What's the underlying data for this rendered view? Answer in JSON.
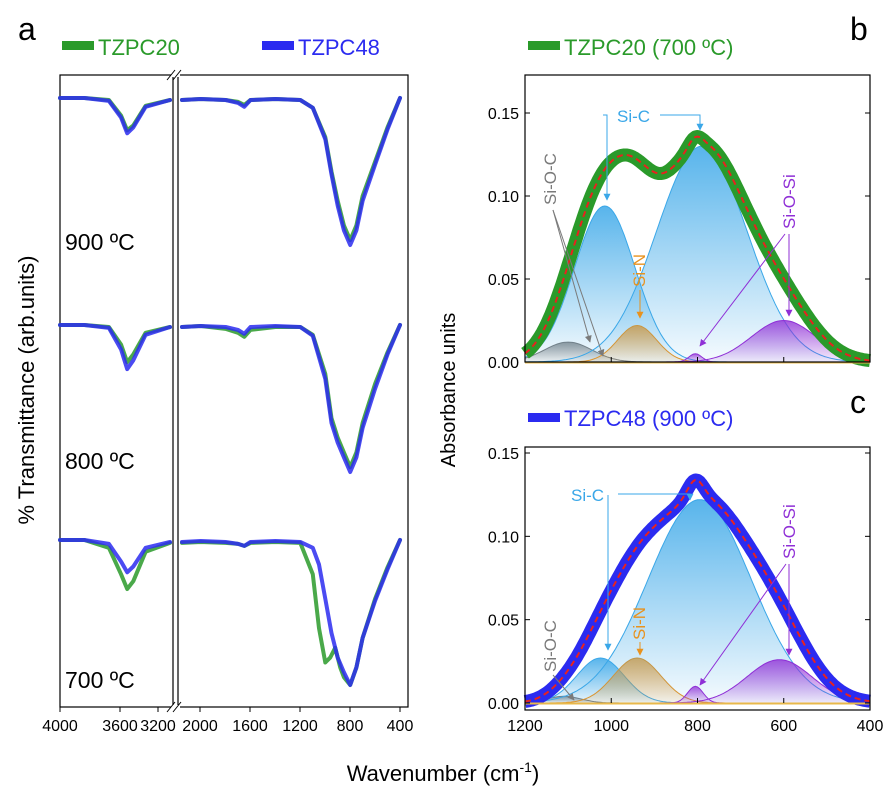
{
  "figure": {
    "xlabel_shared": "Wavenumber (cm",
    "xlabel_sup": "-1",
    "xlabel_close": ")"
  },
  "colors": {
    "TZPC20": "#2a9a2a",
    "TZPC48": "#2b2bf0",
    "SiC": "#3aa7e8",
    "SiN": "#e8921e",
    "SiOC": "#7a7a7a",
    "SiOSi": "#8f2fd6",
    "fit": "#e8221e"
  },
  "chart_data": [
    {
      "panel": "a",
      "type": "line",
      "ylabel": "% Transmittance (arb.units)",
      "xlabel": "Wavenumber (cm-1)",
      "x_ticks": [
        "4000",
        "3600",
        "3200",
        "2000",
        "1600",
        "1200",
        "800",
        "400"
      ],
      "x_break": [
        3100,
        2150
      ],
      "legend": [
        {
          "name": "TZPC20",
          "color": "#2a9a2a"
        },
        {
          "name": "TZPC48",
          "color": "#2b2bf0"
        }
      ],
      "subplots": [
        {
          "label": "900 ºC",
          "series": [
            {
              "name": "TZPC20",
              "x": [
                4000,
                3800,
                3600,
                3500,
                3450,
                3400,
                3300,
                3100,
                2150,
                2000,
                1800,
                1700,
                1650,
                1600,
                1400,
                1200,
                1100,
                1000,
                950,
                900,
                850,
                800,
                750,
                700,
                600,
                500,
                400
              ],
              "y": [
                0,
                0,
                -0.02,
                -0.18,
                -0.33,
                -0.28,
                -0.08,
                -0.02,
                -0.02,
                -0.01,
                -0.02,
                -0.04,
                -0.07,
                -0.02,
                -0.01,
                -0.02,
                -0.1,
                -0.4,
                -0.75,
                -1.05,
                -1.3,
                -1.45,
                -1.3,
                -1.0,
                -0.65,
                -0.3,
                0
              ]
            },
            {
              "name": "TZPC48",
              "x": [
                4000,
                3800,
                3600,
                3500,
                3450,
                3400,
                3300,
                3100,
                2150,
                2000,
                1800,
                1700,
                1650,
                1600,
                1400,
                1200,
                1100,
                1000,
                950,
                900,
                850,
                800,
                750,
                700,
                600,
                500,
                400
              ],
              "y": [
                0,
                0,
                -0.03,
                -0.2,
                -0.36,
                -0.3,
                -0.09,
                -0.02,
                -0.02,
                -0.01,
                -0.02,
                -0.05,
                -0.09,
                -0.02,
                -0.01,
                -0.02,
                -0.1,
                -0.42,
                -0.78,
                -1.1,
                -1.35,
                -1.5,
                -1.35,
                -1.05,
                -0.68,
                -0.32,
                0
              ]
            }
          ]
        },
        {
          "label": "800 ºC",
          "series": [
            {
              "name": "TZPC20",
              "x": [
                4000,
                3800,
                3600,
                3500,
                3450,
                3400,
                3300,
                3100,
                2150,
                2000,
                1800,
                1700,
                1650,
                1600,
                1400,
                1200,
                1100,
                1000,
                950,
                900,
                850,
                800,
                750,
                700,
                600,
                500,
                400
              ],
              "y": [
                0,
                0,
                -0.02,
                -0.2,
                -0.38,
                -0.3,
                -0.08,
                -0.02,
                -0.02,
                -0.01,
                -0.04,
                -0.08,
                -0.12,
                -0.05,
                -0.02,
                -0.02,
                -0.1,
                -0.5,
                -0.95,
                -1.15,
                -1.3,
                -1.45,
                -1.3,
                -1.0,
                -0.6,
                -0.28,
                0
              ]
            },
            {
              "name": "TZPC48",
              "x": [
                4000,
                3800,
                3600,
                3500,
                3450,
                3400,
                3300,
                3100,
                2150,
                2000,
                1800,
                1700,
                1650,
                1600,
                1400,
                1200,
                1100,
                1000,
                950,
                900,
                850,
                800,
                750,
                700,
                600,
                500,
                400
              ],
              "y": [
                0,
                0,
                -0.03,
                -0.25,
                -0.45,
                -0.36,
                -0.1,
                -0.02,
                -0.02,
                -0.01,
                -0.02,
                -0.05,
                -0.09,
                -0.02,
                -0.01,
                -0.02,
                -0.11,
                -0.55,
                -1.0,
                -1.2,
                -1.35,
                -1.5,
                -1.35,
                -1.05,
                -0.65,
                -0.3,
                0
              ]
            }
          ]
        },
        {
          "label": "700 ºC",
          "series": [
            {
              "name": "TZPC20",
              "x": [
                4000,
                3800,
                3600,
                3500,
                3450,
                3400,
                3300,
                3100,
                2150,
                2000,
                1800,
                1700,
                1650,
                1600,
                1400,
                1200,
                1100,
                1050,
                1000,
                960,
                920,
                880,
                850,
                800,
                750,
                700,
                600,
                500,
                400
              ],
              "y": [
                0,
                0,
                -0.08,
                -0.35,
                -0.5,
                -0.42,
                -0.12,
                -0.03,
                -0.03,
                -0.02,
                -0.03,
                -0.04,
                -0.06,
                -0.03,
                -0.02,
                -0.03,
                -0.35,
                -0.9,
                -1.25,
                -1.2,
                -1.1,
                -1.3,
                -1.4,
                -1.48,
                -1.3,
                -1.0,
                -0.6,
                -0.28,
                0
              ]
            },
            {
              "name": "TZPC48",
              "x": [
                4000,
                3800,
                3600,
                3500,
                3450,
                3400,
                3300,
                3100,
                2150,
                2000,
                1800,
                1700,
                1650,
                1600,
                1400,
                1200,
                1100,
                1050,
                1000,
                950,
                900,
                850,
                800,
                750,
                700,
                600,
                500,
                400
              ],
              "y": [
                0,
                0,
                -0.04,
                -0.22,
                -0.33,
                -0.27,
                -0.08,
                -0.02,
                -0.02,
                -0.01,
                -0.02,
                -0.04,
                -0.06,
                -0.02,
                -0.01,
                -0.02,
                -0.08,
                -0.25,
                -0.6,
                -0.95,
                -1.2,
                -1.35,
                -1.48,
                -1.3,
                -1.0,
                -0.62,
                -0.3,
                0
              ]
            }
          ]
        }
      ]
    },
    {
      "panel": "b",
      "type": "area",
      "title": "TZPC20 (700 ºC)",
      "ylabel": "Absorbance units",
      "xlim": [
        1200,
        400
      ],
      "ylim": [
        0,
        0.15
      ],
      "y_ticks": [
        "0.00",
        "0.05",
        "0.10",
        "0.15"
      ],
      "series": [
        {
          "name": "Si-O-C",
          "center": 1100,
          "height": 0.012,
          "width": 55
        },
        {
          "name": "Si-C",
          "center": 1015,
          "height": 0.094,
          "width": 70
        },
        {
          "name": "Si-N",
          "center": 940,
          "height": 0.022,
          "width": 45
        },
        {
          "name": "Si-C",
          "center": 790,
          "height": 0.13,
          "width": 105
        },
        {
          "name": "Si-O-Si",
          "center": 805,
          "height": 0.005,
          "width": 15
        },
        {
          "name": "Si-O-Si",
          "center": 600,
          "height": 0.025,
          "width": 75
        }
      ],
      "annotations": [
        "Si-O-C",
        "Si-C",
        "Si-N",
        "Si-O-Si"
      ]
    },
    {
      "panel": "c",
      "type": "area",
      "title": "TZPC48 (900 ºC)",
      "ylabel": "Absorbance units",
      "xlabel": "Wavenumber (cm-1)",
      "xlim": [
        1200,
        400
      ],
      "ylim": [
        0,
        0.15
      ],
      "x_ticks": [
        "1200",
        "1000",
        "800",
        "600",
        "400"
      ],
      "y_ticks": [
        "0.00",
        "0.05",
        "0.10",
        "0.15"
      ],
      "series": [
        {
          "name": "Si-O-C",
          "center": 1110,
          "height": 0.004,
          "width": 40
        },
        {
          "name": "Si-C",
          "center": 1025,
          "height": 0.027,
          "width": 55
        },
        {
          "name": "Si-N",
          "center": 940,
          "height": 0.027,
          "width": 55
        },
        {
          "name": "Si-C",
          "center": 795,
          "height": 0.122,
          "width": 120
        },
        {
          "name": "Si-O-Si",
          "center": 805,
          "height": 0.01,
          "width": 18
        },
        {
          "name": "Si-O-Si",
          "center": 610,
          "height": 0.026,
          "width": 75
        }
      ],
      "annotations": [
        "Si-O-C",
        "Si-C",
        "Si-N",
        "Si-O-Si"
      ]
    }
  ]
}
